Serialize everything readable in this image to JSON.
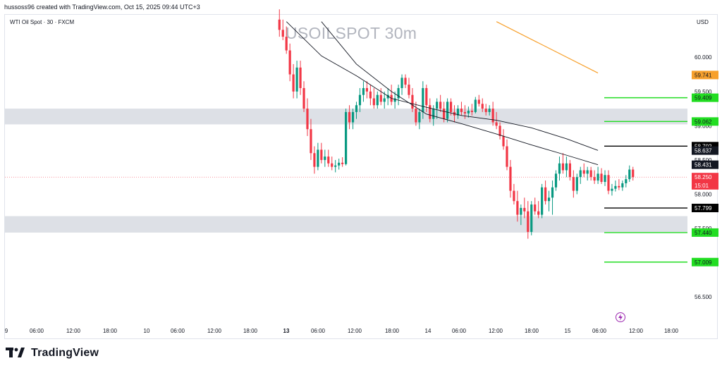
{
  "header": {
    "attribution": "hussoss96 created with TradingView.com, Oct 15, 2025 09:44 UTC+3"
  },
  "symbol": {
    "label": "WTI Oil Spot · 30 · FXCM"
  },
  "watermark": "USOILSPOT 30m",
  "price_axis": {
    "currency": "USD"
  },
  "footer": {
    "brand": "TradingView"
  },
  "colors": {
    "up": "#089981",
    "down": "#f23645",
    "zone": "#dde0e6",
    "level_green": "#22dd22",
    "level_black": "#000000",
    "trend": "#f7a02c",
    "ma": "#131722"
  },
  "chart_data": {
    "type": "candlestick",
    "y_ticks": [
      56.5,
      57.0,
      57.5,
      58.0,
      58.5,
      59.0,
      59.5,
      60.0
    ],
    "y_tick_labels": [
      "56.500",
      "57.000",
      "57.500",
      "58.000",
      "58.500",
      "59.000",
      "59.500",
      "60.000"
    ],
    "ylim": [
      56.08,
      60.62
    ],
    "x_ticks": [
      "9",
      "06:00",
      "12:00",
      "18:00",
      "10",
      "06:00",
      "12:00",
      "18:00",
      "13",
      "06:00",
      "12:00",
      "18:00",
      "14",
      "06:00",
      "12:00",
      "18:00",
      "15",
      "06:00",
      "12:00",
      "18:00"
    ],
    "bold_ticks": [
      "13"
    ],
    "zones": [
      {
        "top": 59.25,
        "bottom": 59.02
      },
      {
        "top": 57.68,
        "bottom": 57.44
      }
    ],
    "levels": [
      {
        "price": 59.409,
        "label": "59.409",
        "color": "green"
      },
      {
        "price": 59.062,
        "label": "59.062",
        "color": "green"
      },
      {
        "price": 58.702,
        "label": "58.702",
        "color": "black"
      },
      {
        "price": 57.799,
        "label": "57.799",
        "color": "black"
      },
      {
        "price": 57.44,
        "label": "57.440",
        "color": "green"
      },
      {
        "price": 57.009,
        "label": "57.009",
        "color": "green"
      }
    ],
    "price_labels": [
      {
        "text": "59.741",
        "price": 59.741,
        "kind": "trend"
      },
      {
        "text": "58.637",
        "price": 58.637,
        "kind": "ma"
      },
      {
        "text": "58.431",
        "price": 58.431,
        "kind": "ma"
      },
      {
        "text": "58.250",
        "price": 58.25,
        "kind": "last"
      },
      {
        "text": "15:01",
        "price": 58.13,
        "kind": "countdown"
      }
    ],
    "last_price": 58.25,
    "trend_line": {
      "from": {
        "slot": 140,
        "price": 60.52
      },
      "to": {
        "slot": 169,
        "price": 59.77
      }
    },
    "ma_upper": [
      {
        "slot": 80,
        "price": 60.52
      },
      {
        "slot": 90,
        "price": 60.02
      },
      {
        "slot": 100,
        "price": 59.73
      },
      {
        "slot": 110,
        "price": 59.4
      },
      {
        "slot": 120,
        "price": 59.27
      },
      {
        "slot": 130,
        "price": 59.15
      },
      {
        "slot": 140,
        "price": 59.08
      },
      {
        "slot": 150,
        "price": 58.97
      },
      {
        "slot": 160,
        "price": 58.81
      },
      {
        "slot": 169,
        "price": 58.64
      }
    ],
    "ma_lower": [
      {
        "slot": 90,
        "price": 60.52
      },
      {
        "slot": 100,
        "price": 59.9
      },
      {
        "slot": 110,
        "price": 59.5
      },
      {
        "slot": 120,
        "price": 59.17
      },
      {
        "slot": 130,
        "price": 59.03
      },
      {
        "slot": 140,
        "price": 58.88
      },
      {
        "slot": 150,
        "price": 58.72
      },
      {
        "slot": 160,
        "price": 58.57
      },
      {
        "slot": 169,
        "price": 58.43
      }
    ],
    "candles": [
      [
        60.55,
        60.7,
        60.3,
        60.4
      ],
      [
        60.4,
        60.55,
        60.25,
        60.3
      ],
      [
        60.3,
        60.45,
        60.05,
        60.1
      ],
      [
        60.1,
        60.2,
        59.65,
        59.75
      ],
      [
        59.75,
        59.9,
        59.4,
        59.5
      ],
      [
        59.5,
        59.95,
        59.4,
        59.85
      ],
      [
        59.85,
        59.95,
        59.45,
        59.55
      ],
      [
        59.55,
        59.65,
        59.2,
        59.25
      ],
      [
        59.25,
        59.4,
        58.85,
        58.95
      ],
      [
        58.95,
        59.1,
        58.5,
        58.6
      ],
      [
        58.6,
        58.7,
        58.3,
        58.4
      ],
      [
        58.4,
        58.75,
        58.35,
        58.65
      ],
      [
        58.65,
        58.75,
        58.45,
        58.5
      ],
      [
        58.5,
        58.65,
        58.4,
        58.55
      ],
      [
        58.55,
        58.65,
        58.4,
        58.45
      ],
      [
        58.45,
        58.55,
        58.35,
        58.4
      ],
      [
        58.4,
        58.5,
        58.32,
        58.42
      ],
      [
        58.42,
        58.52,
        58.36,
        58.46
      ],
      [
        58.46,
        58.54,
        58.4,
        58.44
      ],
      [
        58.44,
        59.25,
        58.42,
        59.2
      ],
      [
        59.2,
        59.3,
        58.95,
        59.05
      ],
      [
        59.05,
        59.25,
        58.95,
        59.2
      ],
      [
        59.2,
        59.35,
        59.1,
        59.3
      ],
      [
        59.3,
        59.55,
        59.2,
        59.45
      ],
      [
        59.45,
        59.65,
        59.35,
        59.55
      ],
      [
        59.55,
        59.65,
        59.4,
        59.5
      ],
      [
        59.5,
        59.6,
        59.3,
        59.4
      ],
      [
        59.4,
        59.55,
        59.25,
        59.3
      ],
      [
        59.3,
        59.5,
        59.25,
        59.45
      ],
      [
        59.45,
        59.55,
        59.3,
        59.35
      ],
      [
        59.35,
        59.5,
        59.25,
        59.4
      ],
      [
        59.4,
        59.55,
        59.3,
        59.45
      ],
      [
        59.45,
        59.6,
        59.3,
        59.35
      ],
      [
        59.35,
        59.5,
        59.25,
        59.4
      ],
      [
        59.4,
        59.6,
        59.3,
        59.55
      ],
      [
        59.55,
        59.75,
        59.45,
        59.7
      ],
      [
        59.7,
        59.75,
        59.55,
        59.6
      ],
      [
        59.6,
        59.7,
        59.4,
        59.45
      ],
      [
        59.45,
        59.55,
        59.2,
        59.25
      ],
      [
        59.25,
        59.35,
        59.0,
        59.05
      ],
      [
        59.05,
        59.25,
        58.95,
        59.2
      ],
      [
        59.2,
        59.65,
        59.1,
        59.55
      ],
      [
        59.55,
        59.6,
        59.2,
        59.3
      ],
      [
        59.3,
        59.4,
        59.05,
        59.1
      ],
      [
        59.1,
        59.3,
        59.0,
        59.25
      ],
      [
        59.25,
        59.4,
        59.1,
        59.35
      ],
      [
        59.35,
        59.45,
        59.2,
        59.25
      ],
      [
        59.25,
        59.35,
        59.05,
        59.1
      ],
      [
        59.1,
        59.4,
        59.05,
        59.35
      ],
      [
        59.35,
        59.4,
        59.15,
        59.2
      ],
      [
        59.2,
        59.3,
        59.05,
        59.15
      ],
      [
        59.15,
        59.3,
        59.1,
        59.25
      ],
      [
        59.25,
        59.35,
        59.15,
        59.2
      ],
      [
        59.2,
        59.3,
        59.1,
        59.18
      ],
      [
        59.18,
        59.28,
        59.12,
        59.22
      ],
      [
        59.22,
        59.32,
        59.15,
        59.2
      ],
      [
        59.2,
        59.42,
        59.18,
        59.38
      ],
      [
        59.38,
        59.45,
        59.28,
        59.32
      ],
      [
        59.32,
        59.4,
        59.2,
        59.25
      ],
      [
        59.25,
        59.32,
        59.15,
        59.2
      ],
      [
        59.2,
        59.3,
        59.15,
        59.25
      ],
      [
        59.25,
        59.35,
        59.0,
        59.05
      ],
      [
        59.05,
        59.2,
        58.95,
        59.0
      ],
      [
        59.0,
        59.05,
        58.8,
        58.85
      ],
      [
        58.85,
        58.95,
        58.65,
        58.7
      ],
      [
        58.7,
        58.8,
        58.35,
        58.4
      ],
      [
        58.4,
        58.5,
        57.95,
        58.05
      ],
      [
        58.05,
        58.15,
        57.85,
        57.9
      ],
      [
        57.9,
        58.05,
        57.6,
        57.7
      ],
      [
        57.7,
        57.85,
        57.55,
        57.8
      ],
      [
        57.8,
        57.95,
        57.65,
        57.75
      ],
      [
        57.75,
        57.9,
        57.35,
        57.45
      ],
      [
        57.45,
        57.9,
        57.4,
        57.85
      ],
      [
        57.85,
        57.95,
        57.7,
        57.75
      ],
      [
        57.75,
        57.9,
        57.65,
        57.7
      ],
      [
        57.7,
        58.15,
        57.65,
        58.1
      ],
      [
        58.1,
        58.2,
        57.85,
        57.9
      ],
      [
        57.9,
        58.05,
        57.75,
        57.95
      ],
      [
        57.95,
        58.2,
        57.7,
        58.1
      ],
      [
        58.1,
        58.35,
        58.05,
        58.3
      ],
      [
        58.3,
        58.55,
        58.2,
        58.45
      ],
      [
        58.45,
        58.6,
        58.3,
        58.35
      ],
      [
        58.35,
        58.55,
        58.25,
        58.45
      ],
      [
        58.45,
        58.5,
        58.2,
        58.25
      ],
      [
        58.25,
        58.35,
        57.95,
        58.05
      ],
      [
        58.05,
        58.3,
        58.0,
        58.25
      ],
      [
        58.25,
        58.4,
        58.15,
        58.35
      ],
      [
        58.35,
        58.45,
        58.25,
        58.3
      ],
      [
        58.3,
        58.4,
        58.2,
        58.35
      ],
      [
        58.35,
        58.4,
        58.2,
        58.25
      ],
      [
        58.25,
        58.35,
        58.15,
        58.2
      ],
      [
        58.2,
        58.4,
        58.15,
        58.3
      ],
      [
        58.3,
        58.38,
        58.15,
        58.18
      ],
      [
        58.18,
        58.35,
        58.12,
        58.28
      ],
      [
        58.28,
        58.35,
        58.0,
        58.05
      ],
      [
        58.05,
        58.15,
        57.98,
        58.08
      ],
      [
        58.08,
        58.2,
        58.04,
        58.12
      ],
      [
        58.12,
        58.22,
        58.06,
        58.1
      ],
      [
        58.1,
        58.2,
        58.05,
        58.16
      ],
      [
        58.16,
        58.28,
        58.1,
        58.22
      ],
      [
        58.22,
        58.42,
        58.18,
        58.36
      ],
      [
        58.36,
        58.4,
        58.2,
        58.25
      ]
    ],
    "first_candle_slot": 78
  }
}
